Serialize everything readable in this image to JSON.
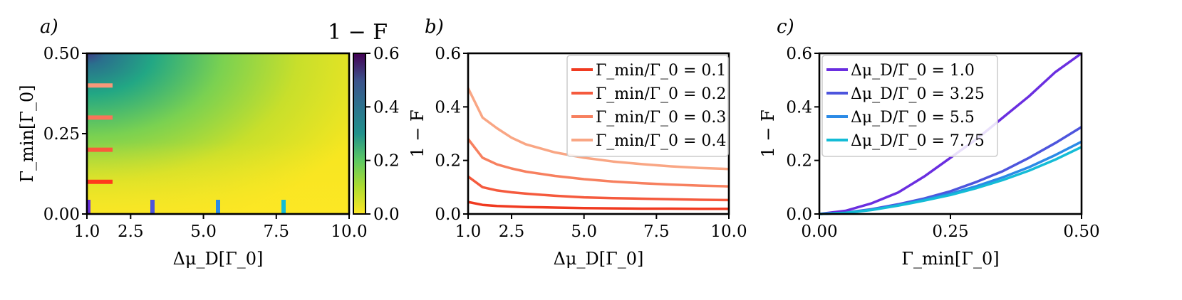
{
  "panels": {
    "a": {
      "letter": "a)",
      "colorbar_title": "1 − F",
      "colorbar_ticks": [
        "0.0",
        "0.2",
        "0.4",
        "0.6"
      ],
      "xlabel": "Δμ_D[Γ_0]",
      "ylabel": "Γ_min[Γ_0]"
    },
    "b": {
      "letter": "b)",
      "xlabel": "Δμ_D[Γ_0]",
      "ylabel": "1 − F"
    },
    "c": {
      "letter": "c)",
      "xlabel": "Γ_min[Γ_0]",
      "ylabel": "1 − F"
    }
  },
  "chart_data": [
    {
      "type": "heatmap",
      "xlabel": "Δμ_D[Γ_0]",
      "ylabel": "Γ_min[Γ_0]",
      "colorbar_label": "1 − F",
      "xlim": [
        1.0,
        10.0
      ],
      "ylim": [
        0.0,
        0.5
      ],
      "zlim": [
        0.0,
        0.6
      ],
      "colormap": "viridis_r",
      "xticks": [
        "1.0",
        "2.5",
        "5.0",
        "7.5",
        "10.0"
      ],
      "yticks": [
        "0.00",
        "0.25",
        "0.50"
      ],
      "markers_gamma": [
        {
          "y": 0.1,
          "color": "#ff3a1c"
        },
        {
          "y": 0.2,
          "color": "#fa5a3c"
        },
        {
          "y": 0.3,
          "color": "#fa7459"
        },
        {
          "y": 0.4,
          "color": "#f8987a"
        }
      ],
      "markers_dmu": [
        {
          "x": 1.0,
          "color": "#6a2ee0"
        },
        {
          "x": 3.25,
          "color": "#4d55dd"
        },
        {
          "x": 5.5,
          "color": "#2b8ae6"
        },
        {
          "x": 7.75,
          "color": "#14bcd6"
        }
      ]
    },
    {
      "type": "line",
      "xlabel": "Δμ_D[Γ_0]",
      "ylabel": "1 − F",
      "xlim": [
        1.0,
        10.0
      ],
      "ylim": [
        0.0,
        0.6
      ],
      "xticks": [
        "1.0",
        "2.5",
        "5.0",
        "7.5",
        "10.0"
      ],
      "yticks": [
        "0.0",
        "0.2",
        "0.4",
        "0.6"
      ],
      "legend_position": "top-right",
      "x": [
        1.0,
        1.5,
        2.0,
        2.5,
        3.0,
        4.0,
        5.0,
        6.0,
        7.0,
        8.0,
        9.0,
        10.0
      ],
      "series": [
        {
          "name": "Γ_min/Γ_0 = 0.1",
          "color": "#f03a20",
          "values": [
            0.045,
            0.034,
            0.03,
            0.028,
            0.026,
            0.024,
            0.022,
            0.021,
            0.02,
            0.02,
            0.019,
            0.019
          ]
        },
        {
          "name": "Γ_min/Γ_0 = 0.2",
          "color": "#f55a3d",
          "values": [
            0.14,
            0.1,
            0.088,
            0.081,
            0.076,
            0.068,
            0.062,
            0.059,
            0.057,
            0.055,
            0.053,
            0.052
          ]
        },
        {
          "name": "Γ_min/Γ_0 = 0.3",
          "color": "#f7805f",
          "values": [
            0.28,
            0.21,
            0.185,
            0.17,
            0.158,
            0.142,
            0.13,
            0.121,
            0.115,
            0.11,
            0.106,
            0.103
          ]
        },
        {
          "name": "Γ_min/Γ_0 = 0.4",
          "color": "#f9a684",
          "values": [
            0.47,
            0.36,
            0.32,
            0.285,
            0.26,
            0.23,
            0.21,
            0.196,
            0.186,
            0.178,
            0.172,
            0.168
          ]
        }
      ]
    },
    {
      "type": "line",
      "xlabel": "Γ_min[Γ_0]",
      "ylabel": "1 − F",
      "xlim": [
        0.0,
        0.5
      ],
      "ylim": [
        0.0,
        0.6
      ],
      "xticks": [
        "0.00",
        "0.25",
        "0.50"
      ],
      "yticks": [
        "0.0",
        "0.2",
        "0.4",
        "0.6"
      ],
      "legend_position": "top-left",
      "x": [
        0.0,
        0.05,
        0.1,
        0.15,
        0.2,
        0.25,
        0.3,
        0.35,
        0.4,
        0.45,
        0.5
      ],
      "series": [
        {
          "name": "Δμ_D/Γ_0 = 1.0",
          "color": "#6a2ee0",
          "values": [
            0.0,
            0.012,
            0.04,
            0.08,
            0.14,
            0.21,
            0.28,
            0.36,
            0.44,
            0.53,
            0.61
          ]
        },
        {
          "name": "Δμ_D/Γ_0 = 3.25",
          "color": "#4d55dd",
          "values": [
            0.0,
            0.005,
            0.018,
            0.036,
            0.058,
            0.085,
            0.12,
            0.16,
            0.21,
            0.265,
            0.325
          ]
        },
        {
          "name": "Δμ_D/Γ_0 = 5.5",
          "color": "#2b8ae6",
          "values": [
            0.0,
            0.004,
            0.016,
            0.033,
            0.053,
            0.076,
            0.104,
            0.137,
            0.175,
            0.22,
            0.27
          ]
        },
        {
          "name": "Δμ_D/Γ_0 = 7.75",
          "color": "#14bcd6",
          "values": [
            0.0,
            0.004,
            0.015,
            0.031,
            0.05,
            0.071,
            0.097,
            0.127,
            0.162,
            0.203,
            0.25
          ]
        }
      ]
    }
  ]
}
